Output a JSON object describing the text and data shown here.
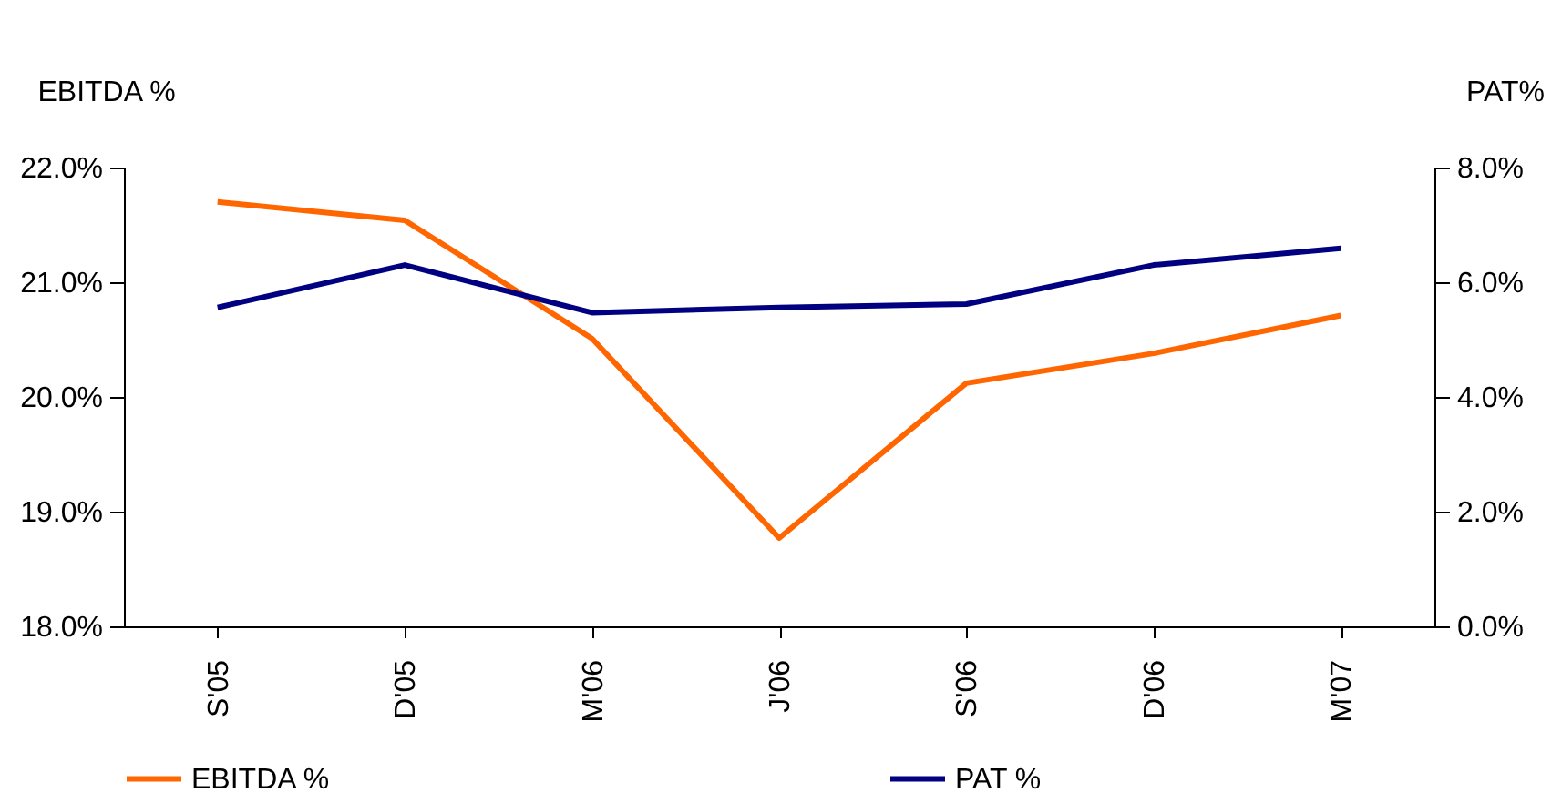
{
  "chart_data": {
    "type": "line",
    "ylabel": "EBITDA %",
    "y2label": "PAT%",
    "categories": [
      "S'05",
      "D'05",
      "M'06",
      "J'06",
      "S'06",
      "D'06",
      "M'07"
    ],
    "series": [
      {
        "name": "EBITDA %",
        "color": "#ff6600",
        "values": [
          21.7,
          21.54,
          20.51,
          18.77,
          20.12,
          20.38,
          20.71
        ]
      },
      {
        "name": "PAT %",
        "color": "#000080",
        "axis": "y2",
        "values": [
          5.56,
          6.3,
          5.47,
          5.56,
          5.62,
          6.3,
          6.59
        ]
      }
    ],
    "ylim": [
      18,
      22
    ],
    "yticks": [
      {
        "value": 18,
        "label": "18.0%"
      },
      {
        "value": 19,
        "label": "19.0%"
      },
      {
        "value": 20,
        "label": "20.0%"
      },
      {
        "value": 21,
        "label": "21.0%"
      },
      {
        "value": 22,
        "label": "22.0%"
      }
    ],
    "y2lim": [
      0,
      8
    ],
    "y2ticks": [
      {
        "value": 0,
        "label": "0.0%"
      },
      {
        "value": 2,
        "label": "2.0%"
      },
      {
        "value": 4,
        "label": "4.0%"
      },
      {
        "value": 6,
        "label": "6.0%"
      },
      {
        "value": 8,
        "label": "8.0%"
      }
    ],
    "grid": false,
    "legend": "bottom",
    "marker": "none",
    "line_style": "solid"
  }
}
